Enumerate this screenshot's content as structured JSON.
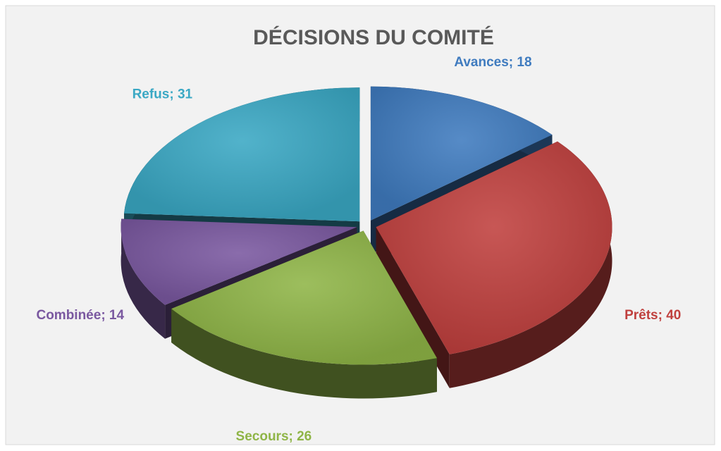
{
  "chart_data": {
    "type": "pie",
    "title": "DÉCISIONS  DU COMITÉ",
    "values": [
      18,
      40,
      26,
      14,
      31
    ],
    "value_labels": [
      "Avances; 18",
      "Prêts; 40",
      "Secours; 26",
      "Combinée; 14",
      "Refus; 31"
    ],
    "colors": [
      "#3f7bbf",
      "#c0403e",
      "#8fb547",
      "#7a58a0",
      "#3aa8c4"
    ]
  }
}
